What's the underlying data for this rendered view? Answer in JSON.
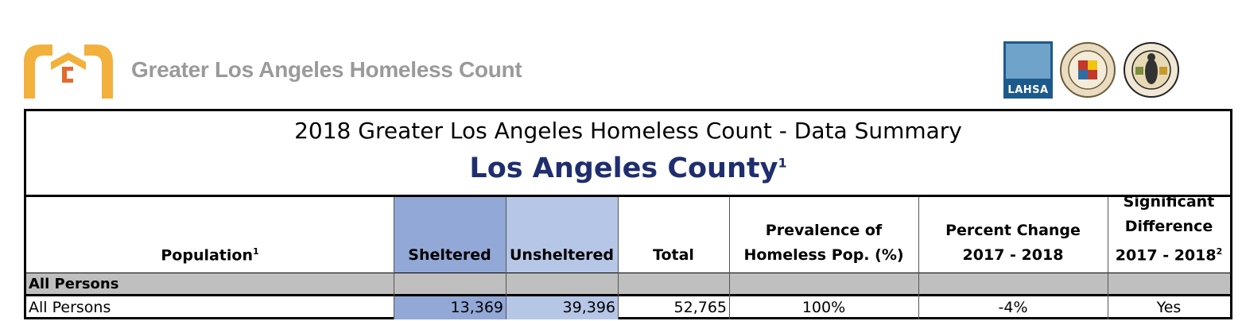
{
  "header": {
    "org_name": "Greater Los Angeles Homeless Count",
    "lahsa_label": "LAHSA",
    "seals": [
      "LAHSA",
      "City of Los Angeles seal",
      "County of Los Angeles seal"
    ]
  },
  "title": {
    "line1": "2018 Greater Los Angeles Homeless Count - Data Summary",
    "line2": "Los Angeles County",
    "line2_sup": "1"
  },
  "columns": {
    "population": "Population",
    "population_sup": "1",
    "sheltered": "Sheltered",
    "unsheltered": "Unsheltered",
    "total": "Total",
    "prevalence_l1": "Prevalence of",
    "prevalence_l2": "Homeless Pop. (%)",
    "pct_change_l1": "Percent Change",
    "pct_change_l2": "2017 - 2018",
    "sig_l1": "Significant",
    "sig_l2": "Difference",
    "sig_l3": "2017 - 2018",
    "sig_sup": "2"
  },
  "section": "All Persons",
  "row": {
    "population": "All Persons",
    "sheltered": "13,369",
    "unsheltered": "39,396",
    "total": "52,765",
    "prevalence": "100%",
    "pct_change": "-4%",
    "significant": "Yes"
  },
  "colors": {
    "sheltered": "#92a8d6",
    "unsheltered": "#b6c6e6",
    "section_bg": "#bfbfbf",
    "county_title": "#1f2e6e",
    "logo": "#f2b13c"
  }
}
